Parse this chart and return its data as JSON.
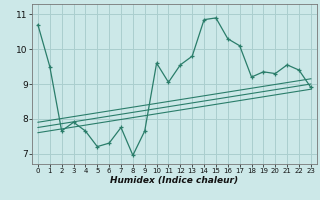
{
  "x": [
    0,
    1,
    2,
    3,
    4,
    5,
    6,
    7,
    8,
    9,
    10,
    11,
    12,
    13,
    14,
    15,
    16,
    17,
    18,
    19,
    20,
    21,
    22,
    23
  ],
  "y_main": [
    10.7,
    9.5,
    7.65,
    7.9,
    7.65,
    7.2,
    7.3,
    7.75,
    6.95,
    7.65,
    9.6,
    9.05,
    9.55,
    9.8,
    10.85,
    10.9,
    10.3,
    10.1,
    9.2,
    9.35,
    9.3,
    9.55,
    9.4,
    8.9
  ],
  "trend1_x": [
    0,
    23
  ],
  "trend1_y": [
    7.9,
    9.15
  ],
  "trend2_x": [
    0,
    23
  ],
  "trend2_y": [
    7.75,
    9.0
  ],
  "trend3_x": [
    0,
    23
  ],
  "trend3_y": [
    7.6,
    8.85
  ],
  "line_color": "#2a7d6a",
  "bg_color": "#cce8e8",
  "grid_color": "#aacece",
  "xlabel": "Humidex (Indice chaleur)",
  "ylim": [
    6.7,
    11.3
  ],
  "xlim": [
    -0.5,
    23.5
  ],
  "yticks": [
    7,
    8,
    9,
    10,
    11
  ],
  "xticks": [
    0,
    1,
    2,
    3,
    4,
    5,
    6,
    7,
    8,
    9,
    10,
    11,
    12,
    13,
    14,
    15,
    16,
    17,
    18,
    19,
    20,
    21,
    22,
    23
  ]
}
